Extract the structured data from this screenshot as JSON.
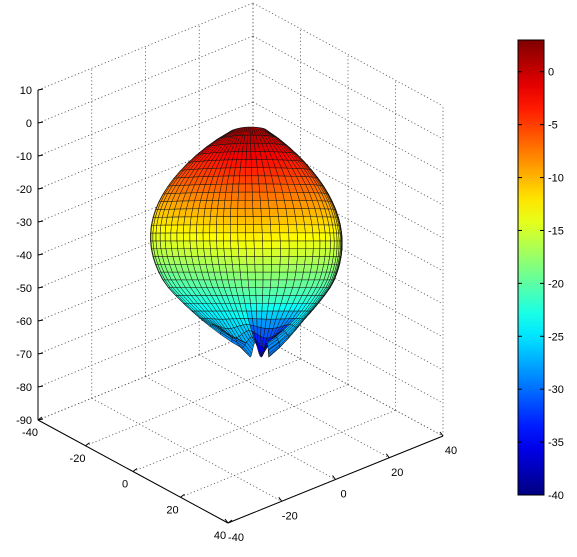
{
  "chart_data": {
    "type": "surface3d",
    "title": "",
    "xlabel": "",
    "ylabel": "",
    "zlabel": "",
    "z_ticks": [
      10,
      0,
      -10,
      -20,
      -30,
      -40,
      -50,
      -60,
      -70,
      -80,
      -90
    ],
    "zlim": [
      -90,
      10
    ],
    "x_ticks": [
      -40,
      -20,
      0,
      20,
      40
    ],
    "xlim": [
      -40,
      40
    ],
    "y_ticks": [
      -40,
      -20,
      0,
      20,
      40
    ],
    "ylim": [
      -40,
      40
    ],
    "grid": true,
    "colormap": "jet",
    "colorbar": {
      "ticks": [
        0,
        -5,
        -10,
        -15,
        -20,
        -25,
        -30,
        -35,
        -40
      ],
      "range": [
        -40,
        3
      ],
      "placement": "right"
    },
    "surface": {
      "description_shape": "radiation-pattern balloon",
      "max_value_dB": 3,
      "min_value_dB": -40
    }
  }
}
